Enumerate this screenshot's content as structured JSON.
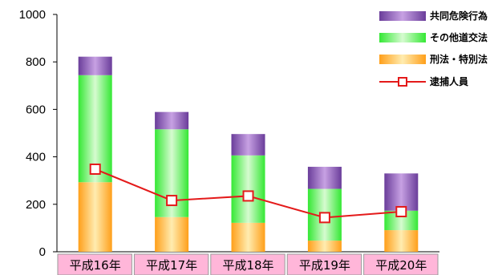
{
  "colors": {
    "kyodo_top": "#6a3d9a",
    "kyodo_mid": "#b58ad6",
    "sonota_edge": "#34e834",
    "sonota_mid": "#caf8c4",
    "keiho_edge": "#ff9f1a",
    "keiho_mid": "#ffe6a0",
    "line": "#e41a1a",
    "marker_fill": "#ffffff",
    "category_bg": "#ffb6d9"
  },
  "chart_data": {
    "type": "bar",
    "stacked": true,
    "categories": [
      "平成16年",
      "平成17年",
      "平成18年",
      "平成19年",
      "平成20年"
    ],
    "ylim": [
      0,
      1000
    ],
    "yticks": [
      "0",
      "200",
      "400",
      "600",
      "800",
      "1000"
    ],
    "series": [
      {
        "name": "刑法・特別法",
        "values": [
          293,
          146,
          122,
          47,
          91
        ]
      },
      {
        "name": "その他道交法",
        "values": [
          451,
          370,
          284,
          218,
          82
        ]
      },
      {
        "name": "共同危険行為",
        "values": [
          78,
          73,
          90,
          93,
          157
        ]
      }
    ],
    "line_series": {
      "name": "逮捕人員",
      "values": [
        348,
        216,
        235,
        144,
        169
      ]
    },
    "legend": {
      "position": "top-right",
      "items": [
        "共同危険行為",
        "その他道交法",
        "刑法・特別法",
        "逮捕人員"
      ]
    }
  }
}
